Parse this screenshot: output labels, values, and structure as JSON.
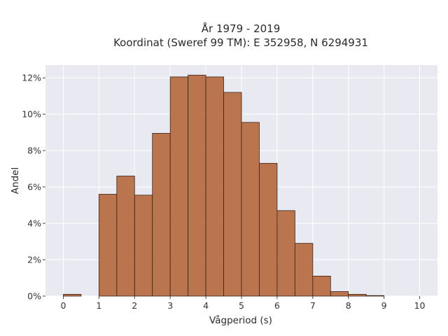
{
  "chart_data": {
    "type": "bar",
    "title_line1": "År 1979 - 2019",
    "title_line2": "Koordinat (Sweref 99 TM): E 352958, N 6294931",
    "xlabel": "Vågperiod (s)",
    "ylabel": "Andel",
    "xlim": [
      -0.5,
      10.5
    ],
    "ylim": [
      0,
      12.7
    ],
    "x_ticks": [
      0,
      1,
      2,
      3,
      4,
      5,
      6,
      7,
      8,
      9,
      10
    ],
    "y_ticks": [
      0,
      2,
      4,
      6,
      8,
      10,
      12
    ],
    "y_tick_labels": [
      "0%",
      "2%",
      "4%",
      "6%",
      "8%",
      "10%",
      "12%"
    ],
    "bin_width": 0.5,
    "bin_starts": [
      0,
      0.5,
      1,
      1.5,
      2,
      2.5,
      3,
      3.5,
      4,
      4.5,
      5,
      5.5,
      6,
      6.5,
      7,
      7.5,
      8,
      8.5,
      9,
      9.5
    ],
    "values": [
      0.1,
      0,
      5.6,
      6.6,
      5.55,
      8.95,
      12.05,
      12.15,
      12.05,
      11.2,
      9.55,
      7.3,
      4.7,
      2.9,
      1.1,
      0.25,
      0.1,
      0.03,
      0,
      0
    ],
    "grid": true,
    "colors": {
      "bar": "#b56a41",
      "edge": "#3a2418",
      "plot_bg": "#e9e9f1",
      "grid": "#ffffff"
    }
  }
}
